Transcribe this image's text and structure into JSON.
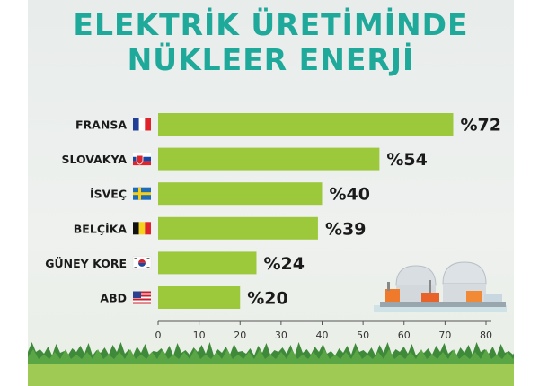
{
  "title_lines": [
    "ELEKTRİK ÜRETİMİNDE",
    "NÜKLEER ENERJİ"
  ],
  "colors": {
    "title": "#1fa99a",
    "bar": "#9cc93c",
    "text": "#1a1a1a"
  },
  "chart_data": {
    "type": "bar",
    "orientation": "horizontal",
    "title": "ELEKTRİK ÜRETİMİNDE NÜKLEER ENERJİ",
    "categories": [
      "FRANSA",
      "SLOVAKYA",
      "İSVEÇ",
      "BELÇİKA",
      "GÜNEY KORE",
      "ABD"
    ],
    "values": [
      72,
      54,
      40,
      39,
      24,
      20
    ],
    "value_labels": [
      "%72",
      "%54",
      "%40",
      "%39",
      "%24",
      "%20"
    ],
    "flags": [
      "france-flag",
      "slovakia-flag",
      "sweden-flag",
      "belgium-flag",
      "south-korea-flag",
      "usa-flag"
    ],
    "xlim": [
      0,
      80
    ],
    "xticks": [
      0,
      10,
      20,
      30,
      40,
      50,
      60,
      70,
      80
    ],
    "xlabel": "",
    "ylabel": "",
    "grid": false,
    "legend": "none"
  }
}
